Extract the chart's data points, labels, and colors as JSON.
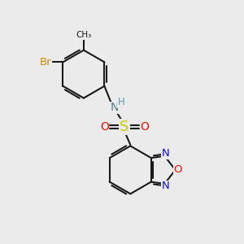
{
  "bg_color": "#ebebeb",
  "line_color": "#1a1a1a",
  "bond_width": 1.5,
  "colors": {
    "N": "#4a7f8a",
    "H": "#5a9aaa",
    "O": "#ee1100",
    "S": "#cccc00",
    "Br": "#cc8800",
    "N_ring": "#1111cc",
    "O_ring": "#ee1100"
  },
  "figsize": [
    3.0,
    3.0
  ],
  "dpi": 100
}
